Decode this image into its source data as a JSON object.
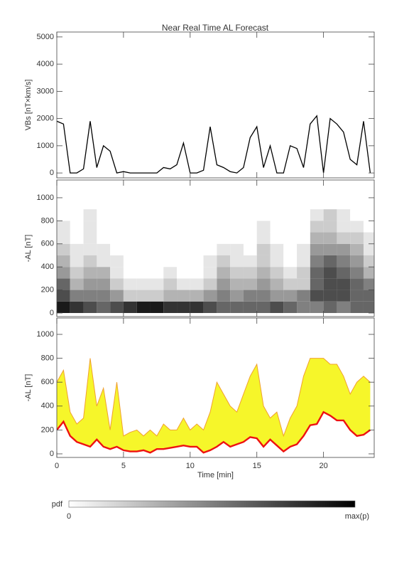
{
  "title": "Near Real Time AL Forecast",
  "chart_data": [
    {
      "type": "line",
      "ylabel": "VBs [nT×km/s]",
      "color": "#000000",
      "x": [
        0,
        0.5,
        1,
        1.5,
        2,
        2.5,
        3,
        3.5,
        4,
        4.5,
        5,
        5.5,
        6,
        6.5,
        7,
        7.5,
        8,
        8.5,
        9,
        9.5,
        10,
        10.5,
        11,
        11.5,
        12,
        12.5,
        13,
        13.5,
        14,
        14.5,
        15,
        15.5,
        16,
        16.5,
        17,
        17.5,
        18,
        18.5,
        19,
        19.5,
        20,
        20.5,
        21,
        21.5,
        22,
        22.5,
        23,
        23.5
      ],
      "values": [
        1900,
        1800,
        0,
        0,
        150,
        1900,
        200,
        1000,
        800,
        0,
        50,
        0,
        0,
        0,
        0,
        0,
        200,
        150,
        300,
        1100,
        0,
        0,
        100,
        1700,
        300,
        200,
        50,
        0,
        200,
        1300,
        1700,
        200,
        1000,
        0,
        0,
        1000,
        900,
        200,
        1800,
        2100,
        0,
        2000,
        1800,
        1500,
        500,
        300,
        1900,
        0
      ],
      "xlim": [
        0,
        23.8
      ],
      "xticks": [
        0,
        5,
        10,
        15,
        20
      ],
      "ylim": [
        -180,
        5180
      ],
      "yticks": [
        0,
        1000,
        2000,
        3000,
        4000,
        5000
      ]
    },
    {
      "type": "heatmap",
      "ylabel": "-AL [nT]",
      "colors": [
        "#ffffff",
        "#000000"
      ],
      "xbins": [
        0,
        1,
        2,
        3,
        4,
        5,
        6,
        7,
        8,
        9,
        10,
        11,
        12,
        13,
        14,
        15,
        16,
        17,
        18,
        19,
        20,
        21,
        22,
        23,
        24
      ],
      "ybins": [
        0,
        100,
        200,
        300,
        400,
        500,
        600,
        700,
        800,
        900
      ],
      "z": [
        [
          0.9,
          0.8,
          0.7,
          0.6,
          0.7,
          0.8,
          0.9,
          0.9,
          0.8,
          0.8,
          0.8,
          0.7,
          0.6,
          0.6,
          0.6,
          0.6,
          0.7,
          0.6,
          0.5,
          0.5,
          0.6,
          0.5,
          0.6,
          0.6
        ],
        [
          0.7,
          0.5,
          0.5,
          0.5,
          0.4,
          0.2,
          0.2,
          0.2,
          0.3,
          0.3,
          0.3,
          0.4,
          0.5,
          0.4,
          0.5,
          0.5,
          0.4,
          0.4,
          0.5,
          0.7,
          0.7,
          0.7,
          0.6,
          0.6
        ],
        [
          0.6,
          0.3,
          0.4,
          0.4,
          0.2,
          0.1,
          0.1,
          0.1,
          0.2,
          0.1,
          0.1,
          0.2,
          0.4,
          0.3,
          0.3,
          0.4,
          0.3,
          0.2,
          0.2,
          0.6,
          0.7,
          0.7,
          0.6,
          0.5
        ],
        [
          0.4,
          0.2,
          0.3,
          0.3,
          0.1,
          0,
          0,
          0,
          0.1,
          0,
          0,
          0.1,
          0.3,
          0.2,
          0.2,
          0.3,
          0.2,
          0.1,
          0.2,
          0.6,
          0.7,
          0.6,
          0.5,
          0.3
        ],
        [
          0.3,
          0.1,
          0.2,
          0.1,
          0.1,
          0,
          0,
          0,
          0,
          0,
          0,
          0.1,
          0.2,
          0.1,
          0.1,
          0.2,
          0.1,
          0,
          0.1,
          0.5,
          0.6,
          0.5,
          0.4,
          0.2
        ],
        [
          0.2,
          0.1,
          0.1,
          0.1,
          0,
          0,
          0,
          0,
          0,
          0,
          0,
          0,
          0.1,
          0.1,
          0,
          0.2,
          0.1,
          0,
          0.1,
          0.4,
          0.4,
          0.4,
          0.3,
          0.1
        ],
        [
          0.1,
          0,
          0.1,
          0,
          0,
          0,
          0,
          0,
          0,
          0,
          0,
          0,
          0,
          0,
          0,
          0.1,
          0,
          0,
          0,
          0.3,
          0.3,
          0.2,
          0.2,
          0.1
        ],
        [
          0.1,
          0,
          0.1,
          0,
          0,
          0,
          0,
          0,
          0,
          0,
          0,
          0,
          0,
          0,
          0,
          0.1,
          0,
          0,
          0,
          0.2,
          0.2,
          0.1,
          0.1,
          0
        ],
        [
          0,
          0,
          0.1,
          0,
          0,
          0,
          0,
          0,
          0,
          0,
          0,
          0,
          0,
          0,
          0,
          0,
          0,
          0,
          0,
          0.1,
          0.2,
          0.1,
          0,
          0
        ]
      ],
      "xlim": [
        0,
        23.8
      ],
      "xticks": [
        0,
        5,
        10,
        15,
        20
      ],
      "ylim": [
        -31,
        1154
      ],
      "yticks": [
        0,
        200,
        400,
        600,
        800,
        1000
      ]
    },
    {
      "type": "band",
      "ylabel": "-AL [nT]",
      "xlabel": "Time [min]",
      "x": [
        0,
        0.5,
        1,
        1.5,
        2,
        2.5,
        3,
        3.5,
        4,
        4.5,
        5,
        5.5,
        6,
        6.5,
        7,
        7.5,
        8,
        8.5,
        9,
        9.5,
        10,
        10.5,
        11,
        11.5,
        12,
        12.5,
        13,
        13.5,
        14,
        14.5,
        15,
        15.5,
        16,
        16.5,
        17,
        17.5,
        18,
        18.5,
        19,
        19.5,
        20,
        20.5,
        21,
        21.5,
        22,
        22.5,
        23,
        23.5
      ],
      "series": [
        {
          "color": "#ee1111",
          "values": [
            200,
            270,
            150,
            100,
            80,
            60,
            120,
            60,
            40,
            60,
            30,
            20,
            20,
            30,
            10,
            40,
            40,
            50,
            60,
            70,
            60,
            60,
            10,
            30,
            60,
            100,
            60,
            80,
            100,
            140,
            130,
            60,
            120,
            70,
            20,
            60,
            80,
            150,
            240,
            250,
            350,
            320,
            280,
            280,
            200,
            150,
            160,
            200
          ]
        },
        {
          "color": "#f0a030",
          "values": [
            600,
            700,
            350,
            250,
            300,
            800,
            400,
            550,
            200,
            600,
            150,
            180,
            200,
            150,
            200,
            150,
            250,
            200,
            200,
            300,
            200,
            250,
            200,
            350,
            600,
            500,
            400,
            350,
            500,
            650,
            750,
            400,
            300,
            350,
            150,
            300,
            400,
            650,
            800,
            800,
            800,
            750,
            750,
            650,
            500,
            600,
            650,
            600
          ]
        }
      ],
      "fill": "#f6f62a",
      "xlim": [
        0,
        23.8
      ],
      "xticks": [
        0,
        5,
        10,
        15,
        20
      ],
      "ylim": [
        -30,
        1137
      ],
      "yticks": [
        0,
        200,
        400,
        600,
        800,
        1000
      ]
    }
  ],
  "colorbar": {
    "label": "pdf",
    "min_label": "0",
    "max_label": "max(p)",
    "colors": [
      "#ffffff",
      "#000000"
    ]
  }
}
